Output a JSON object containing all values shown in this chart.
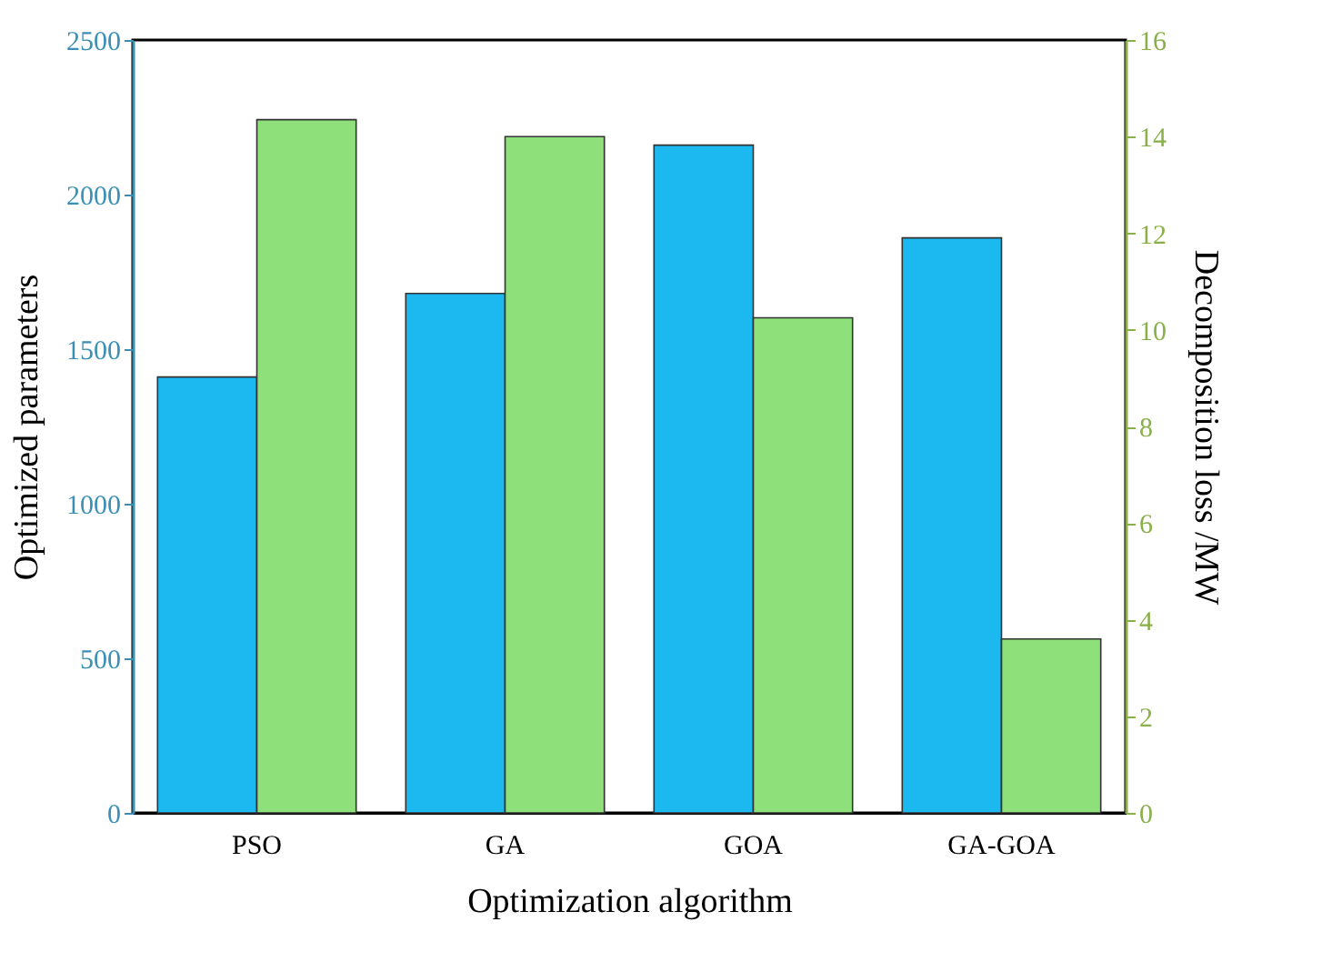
{
  "chart_data": {
    "type": "bar",
    "xlabel": "Optimization algorithm",
    "ylabel": "Optimized parameters",
    "y2label": "Decomposition loss /MW",
    "categories": [
      "PSO",
      "GA",
      "GOA",
      "GA-GOA"
    ],
    "series": [
      {
        "color": "#1cb8f0",
        "values": [
          1410,
          1680,
          2160,
          1860
        ]
      },
      {
        "color": "#8ee07a",
        "axis": "y2",
        "values": [
          14.35,
          14.0,
          10.25,
          3.6
        ]
      }
    ],
    "ylim": [
      0,
      2500
    ],
    "yticks": [
      0,
      500,
      1000,
      1500,
      2000,
      2500
    ],
    "y2lim": [
      0,
      16
    ],
    "y2ticks": [
      0,
      2,
      4,
      6,
      8,
      10,
      12,
      14,
      16
    ],
    "grid": false
  }
}
